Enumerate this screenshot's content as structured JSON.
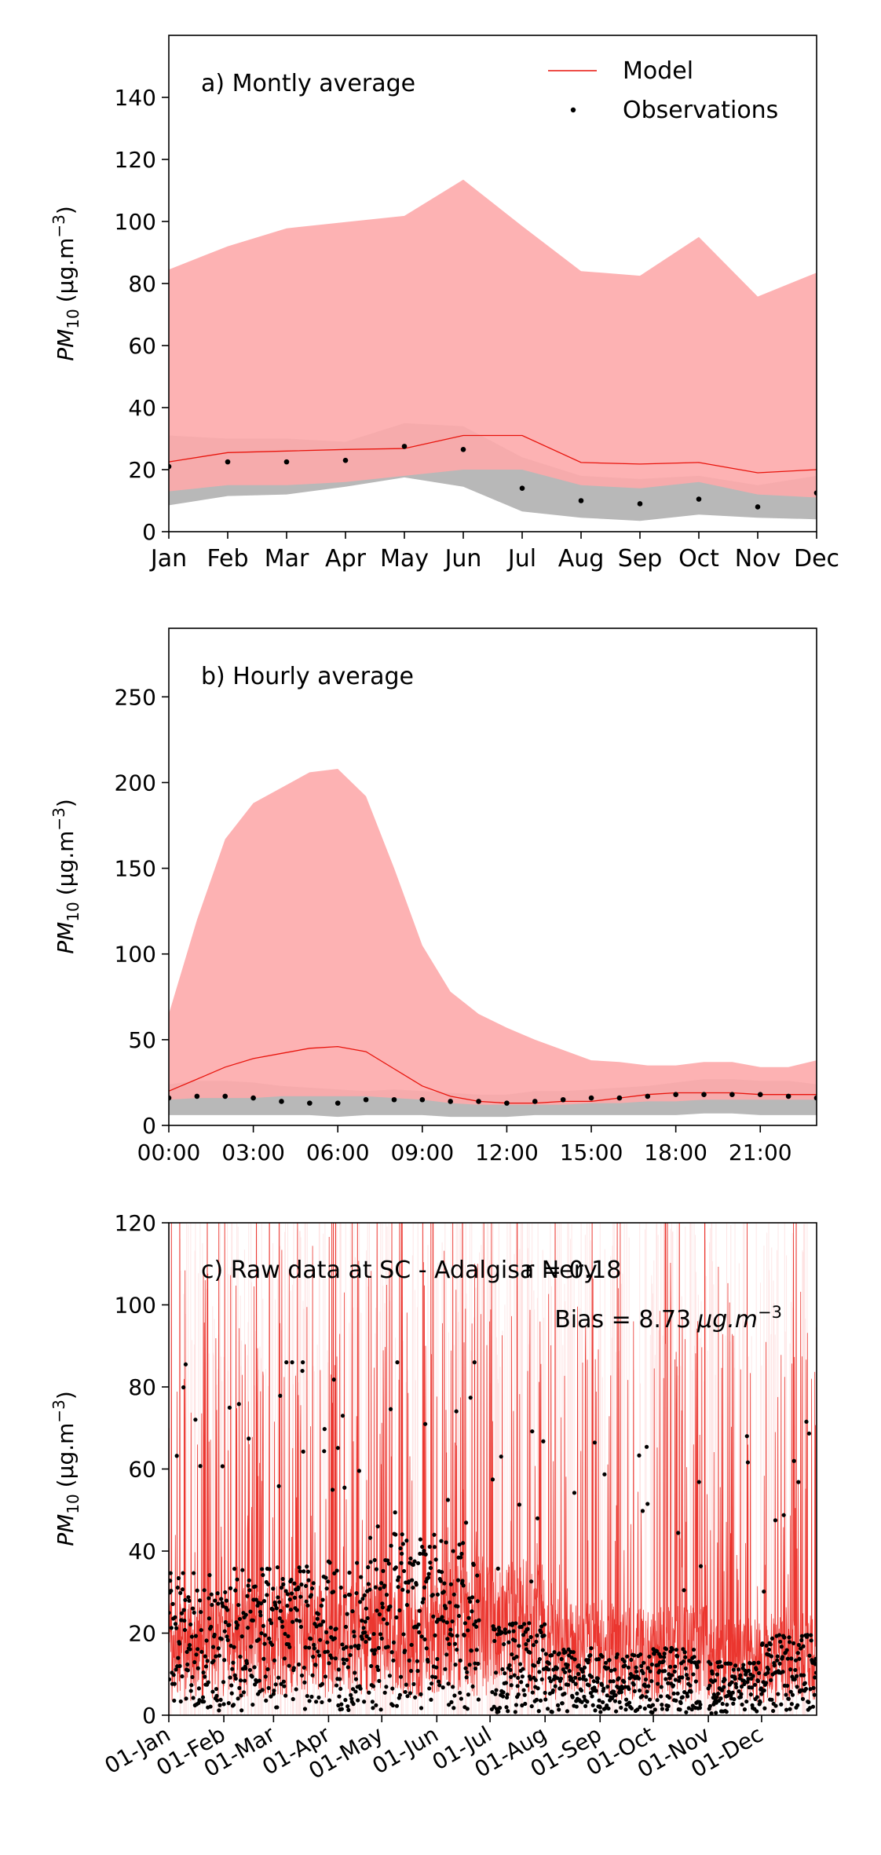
{
  "chart_data": [
    {
      "type": "line",
      "title": "a) Montly average",
      "ylabel_base": "PM",
      "ylabel_sub": "10",
      "ylabel_unit": "(μg.m",
      "ylabel_exp": "−3",
      "ylabel_close": ")",
      "ylim": [
        0,
        160
      ],
      "yticks": [
        "0",
        "20",
        "40",
        "60",
        "80",
        "100",
        "120",
        "140"
      ],
      "categories": [
        "Jan",
        "Feb",
        "Mar",
        "Apr",
        "May",
        "Jun",
        "Jul",
        "Aug",
        "Sep",
        "Oct",
        "Nov",
        "Dec"
      ],
      "legend": {
        "placement": "top-right",
        "model_label": "Model",
        "obs_label": "Observations"
      },
      "series": [
        {
          "name": "Model",
          "values": [
            22.5,
            25.5,
            26.0,
            26.5,
            26.8,
            31.0,
            31.0,
            22.3,
            21.8,
            22.3,
            19.0,
            20.0
          ]
        },
        {
          "name": "Observations",
          "values": [
            21.0,
            22.5,
            22.5,
            23.0,
            27.5,
            26.5,
            14.0,
            10.0,
            9.0,
            10.5,
            8.0,
            12.5
          ]
        }
      ],
      "model_band": {
        "upper": [
          84.5,
          92.0,
          97.8,
          99.8,
          101.8,
          113.5,
          98.5,
          84.0,
          82.5,
          95.0,
          75.8,
          83.5
        ],
        "lower": [
          13.0,
          15.0,
          15.0,
          16.0,
          18.0,
          20.0,
          20.0,
          15.0,
          14.0,
          16.0,
          12.0,
          11.0
        ]
      },
      "obs_band": {
        "upper": [
          31.0,
          30.0,
          30.0,
          29.0,
          35.0,
          34.0,
          24.0,
          18.0,
          17.0,
          18.0,
          15.0,
          18.0
        ],
        "lower": [
          8.5,
          11.5,
          12.0,
          14.5,
          17.5,
          14.5,
          6.5,
          4.5,
          3.5,
          5.5,
          4.5,
          4.0
        ]
      }
    },
    {
      "type": "line",
      "title": "b) Hourly average",
      "ylabel_base": "PM",
      "ylabel_sub": "10",
      "ylabel_unit": "(μg.m",
      "ylabel_exp": "−3",
      "ylabel_close": ")",
      "ylim": [
        0,
        290
      ],
      "yticks": [
        "0",
        "50",
        "100",
        "150",
        "200",
        "250"
      ],
      "xticks": [
        "00:00",
        "03:00",
        "06:00",
        "09:00",
        "12:00",
        "15:00",
        "18:00",
        "21:00"
      ],
      "hours": [
        0,
        1,
        2,
        3,
        4,
        5,
        6,
        7,
        8,
        9,
        10,
        11,
        12,
        13,
        14,
        15,
        16,
        17,
        18,
        19,
        20,
        21,
        22,
        23
      ],
      "series": [
        {
          "name": "Model",
          "values": [
            20,
            27,
            34,
            39,
            42,
            45,
            46,
            43,
            33,
            23,
            17,
            14,
            13,
            13,
            14,
            14,
            16,
            18,
            19,
            19,
            19,
            18,
            18,
            18
          ]
        },
        {
          "name": "Observations",
          "values": [
            16,
            17,
            17,
            16,
            14,
            13,
            13,
            15,
            15,
            15,
            14,
            14,
            13,
            14,
            15,
            16,
            16,
            17,
            18,
            18,
            18,
            18,
            17,
            16
          ]
        }
      ],
      "model_band": {
        "upper": [
          65,
          120,
          167,
          188,
          197,
          206,
          208,
          192,
          150,
          105,
          78,
          65,
          57,
          50,
          44,
          38,
          37,
          35,
          35,
          37,
          37,
          34,
          34,
          38
        ],
        "lower": [
          15,
          16,
          16,
          16,
          17,
          17,
          17,
          17,
          16,
          15,
          13,
          12,
          12,
          12,
          12,
          13,
          13,
          14,
          14,
          15,
          15,
          15,
          15,
          15
        ]
      },
      "obs_band": {
        "upper": [
          24,
          26,
          26,
          25,
          23,
          22,
          21,
          20,
          21,
          20,
          19,
          18,
          18,
          20,
          20,
          21,
          22,
          23,
          25,
          27,
          27,
          26,
          26,
          24
        ],
        "lower": [
          6,
          6,
          6,
          6,
          6,
          6,
          5,
          6,
          6,
          6,
          5,
          5,
          5,
          6,
          6,
          6,
          6,
          6,
          6,
          7,
          7,
          6,
          6,
          6
        ]
      }
    },
    {
      "type": "line",
      "title": "c) Raw data at SC - Adalgisa Nery",
      "r_label": "r = 0.18",
      "bias_label": "Bias = 8.73",
      "bias_unit": "μg.m",
      "bias_exp": "−3",
      "ylabel_base": "PM",
      "ylabel_sub": "10",
      "ylabel_unit": "(μg.m",
      "ylabel_exp": "−3",
      "ylabel_close": ")",
      "ylim": [
        0,
        120
      ],
      "yticks": [
        "0",
        "20",
        "40",
        "60",
        "80",
        "100",
        "120"
      ],
      "xticks": [
        "01-Jan",
        "01-Feb",
        "01-Mar",
        "01-Apr",
        "01-May",
        "01-Jun",
        "01-Jul",
        "01-Aug",
        "01-Sep",
        "01-Oct",
        "01-Nov",
        "01-Dec"
      ],
      "month_start_days": [
        0,
        31,
        59,
        90,
        120,
        151,
        181,
        212,
        243,
        273,
        304,
        334
      ],
      "x_range_days": [
        0,
        365
      ],
      "obs_gaps_days": [
        [
          175,
          182
        ],
        [
          300,
          304
        ],
        [
          320,
          321
        ]
      ],
      "series": [
        {
          "name": "Model",
          "daily_mean": [
            22,
            25,
            26,
            26,
            27,
            31,
            31,
            22,
            22,
            22,
            19,
            20
          ]
        },
        {
          "name": "Observations",
          "daily_mean": [
            21,
            22,
            22,
            23,
            27,
            26,
            14,
            10,
            9,
            10,
            8,
            12
          ]
        }
      ]
    }
  ],
  "colors": {
    "model_line": "#e8140c",
    "model_band": "#fdaaab",
    "obs_band": "#b8b8b8",
    "obs_point": "#000000",
    "axis": "#000000"
  }
}
